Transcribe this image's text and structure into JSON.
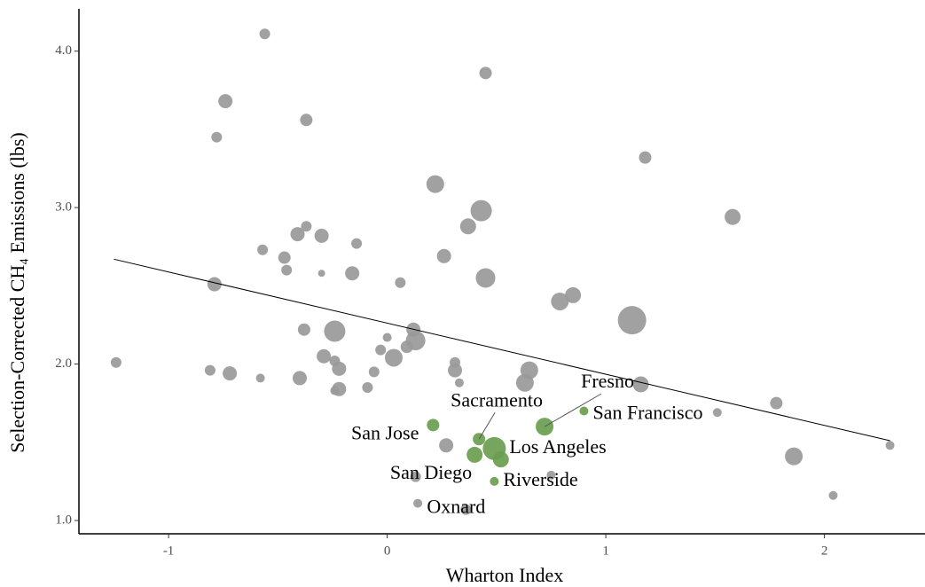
{
  "chart_data": {
    "type": "scatter",
    "x_label": "Wharton Index",
    "y_label": "Selection-Corrected CH₄ Emissions (lbs)",
    "xlim": [
      -1.41,
      2.46
    ],
    "ylim": [
      0.915,
      4.27
    ],
    "xticks": [
      -1,
      0,
      1,
      2
    ],
    "yticks": [
      {
        "value": 1,
        "label": "1.0"
      },
      {
        "value": 2,
        "label": "2.0"
      },
      {
        "value": 3,
        "label": "3.0"
      },
      {
        "value": 4,
        "label": "4.0"
      }
    ],
    "series": [
      {
        "color": "#999999",
        "x": [
          -0.56,
          0.45,
          -0.74,
          -0.37,
          -0.78,
          1.18,
          0.22,
          0.43,
          1.58,
          0.37,
          -0.37,
          -0.41,
          -0.3,
          -0.14,
          -0.57,
          -0.47,
          0.26,
          -0.46,
          -0.3,
          -0.16,
          0.45,
          0.06,
          -0.79,
          0.85,
          0.79,
          1.12,
          -0.38,
          -0.24,
          0.12,
          0.13,
          0.09,
          0.0,
          -0.03,
          0.03,
          -0.29,
          -0.24,
          -0.22,
          -1.24,
          -0.81,
          -0.72,
          -0.58,
          -0.4,
          -0.06,
          0.31,
          0.31,
          0.65,
          0.63,
          0.33,
          -0.22,
          -0.24,
          -0.09,
          1.16,
          1.78,
          1.51,
          0.27,
          0.75,
          0.13,
          1.86,
          2.3,
          2.04,
          0.14,
          0.36
        ],
        "values": [
          4.11,
          3.86,
          3.68,
          3.56,
          3.45,
          3.32,
          3.15,
          2.98,
          2.94,
          2.88,
          2.88,
          2.83,
          2.82,
          2.77,
          2.73,
          2.68,
          2.69,
          2.6,
          2.58,
          2.58,
          2.55,
          2.52,
          2.51,
          2.44,
          2.4,
          2.28,
          2.22,
          2.21,
          2.22,
          2.15,
          2.11,
          2.17,
          2.09,
          2.04,
          2.05,
          2.02,
          1.97,
          2.01,
          1.96,
          1.94,
          1.91,
          1.91,
          1.95,
          2.01,
          1.96,
          1.96,
          1.88,
          1.88,
          1.84,
          1.83,
          1.85,
          1.87,
          1.75,
          1.69,
          1.48,
          1.29,
          1.28,
          1.41,
          1.48,
          1.16,
          1.11,
          1.07
        ],
        "sizes": [
          6,
          7,
          8,
          7,
          6,
          7,
          10,
          12,
          9,
          9,
          6,
          8,
          8,
          6,
          6,
          7,
          8,
          6,
          4,
          8,
          11,
          6,
          8,
          9,
          10,
          16,
          7,
          12,
          8,
          11,
          7,
          5,
          6,
          10,
          8,
          6,
          8,
          6,
          6,
          8,
          5,
          8,
          6,
          6,
          8,
          10,
          10,
          5,
          8,
          5,
          6,
          9,
          7,
          5,
          8,
          5,
          6,
          10,
          5,
          5,
          5,
          6
        ]
      },
      {
        "color": "#6a9e4f",
        "x": [
          0.21,
          0.42,
          0.49,
          0.4,
          0.52,
          0.49,
          0.72,
          0.9
        ],
        "values": [
          1.61,
          1.52,
          1.46,
          1.42,
          1.39,
          1.25,
          1.6,
          1.7
        ],
        "sizes": [
          7,
          7,
          13,
          9,
          9,
          5,
          10,
          5
        ]
      }
    ],
    "trend_line": {
      "x": [
        -1.25,
        2.3
      ],
      "values": [
        2.67,
        1.51
      ]
    },
    "annotations": [
      {
        "text": "San Jose",
        "x": 0.21,
        "y": 1.61
      },
      {
        "text": "Sacramento",
        "x": 0.42,
        "y": 1.52
      },
      {
        "text": "Los Angeles",
        "x": 0.49,
        "y": 1.46
      },
      {
        "text": "San Diego",
        "x": 0.4,
        "y": 1.42
      },
      {
        "text": "Riverside",
        "x": 0.49,
        "y": 1.25
      },
      {
        "text": "Fresno",
        "x": 0.72,
        "y": 1.6
      },
      {
        "text": "San Francisco",
        "x": 0.9,
        "y": 1.7
      },
      {
        "text": "Oxnard",
        "x": 0.36,
        "y": 1.07
      }
    ]
  }
}
